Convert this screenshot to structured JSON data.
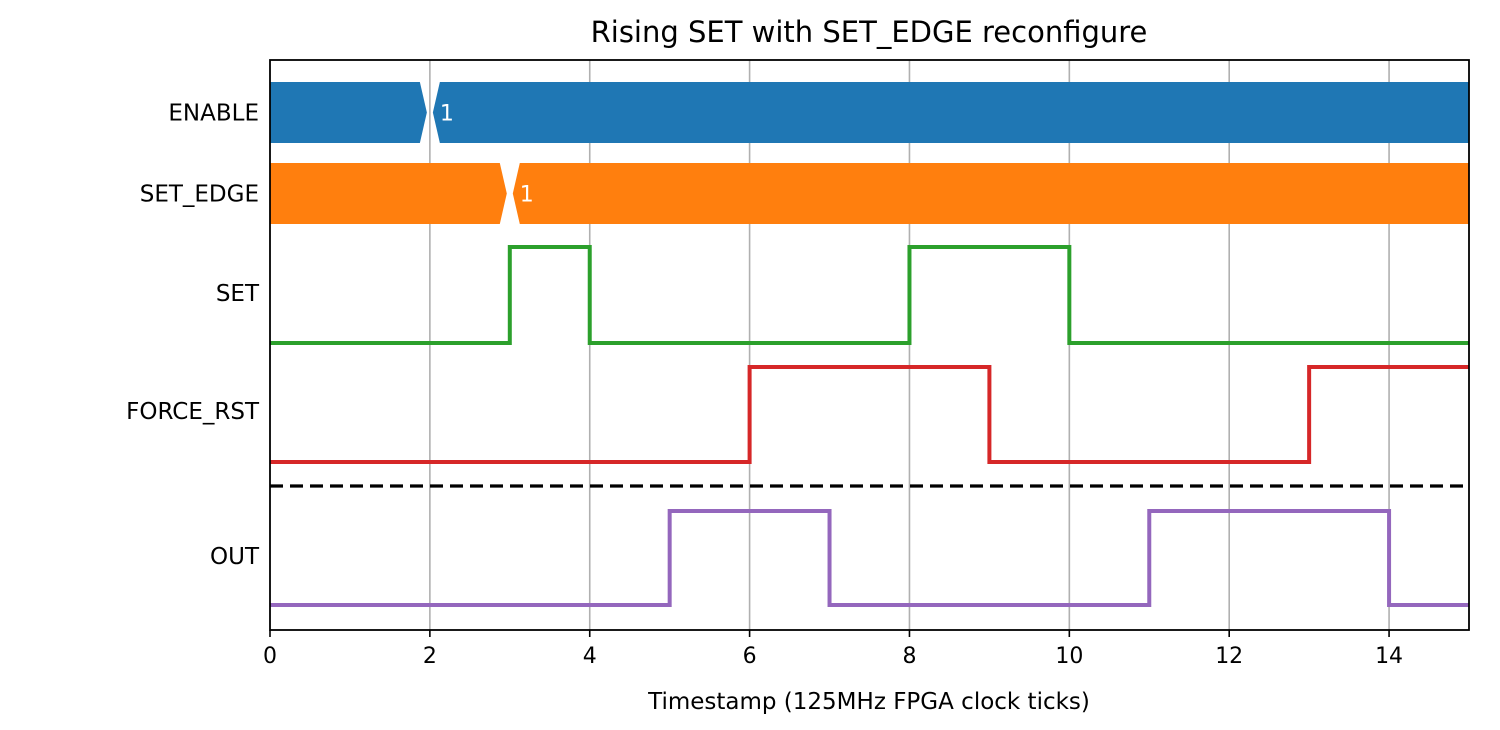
{
  "chart_data": {
    "type": "line",
    "chart_kind": "digital-timing-diagram",
    "title": "Rising SET with SET_EDGE reconfigure",
    "xlabel": "Timestamp (125MHz FPGA clock ticks)",
    "xlim": [
      0,
      15
    ],
    "xticks": [
      0,
      2,
      4,
      6,
      8,
      10,
      12,
      14
    ],
    "grid": "vertical",
    "separator_line": "dashed, between FORCE_RST and OUT",
    "signals": [
      {
        "name": "ENABLE",
        "kind": "bus",
        "color": "#1f77b4",
        "transitions": [
          {
            "x": 2,
            "value": "1"
          }
        ]
      },
      {
        "name": "SET_EDGE",
        "kind": "bus",
        "color": "#ff7f0e",
        "transitions": [
          {
            "x": 3,
            "value": "1"
          }
        ]
      },
      {
        "name": "SET",
        "kind": "digital",
        "color": "#2ca02c",
        "initial": 0,
        "edges": [
          3,
          4,
          8,
          10
        ]
      },
      {
        "name": "FORCE_RST",
        "kind": "digital",
        "color": "#d62728",
        "initial": 0,
        "edges": [
          6,
          9,
          13
        ]
      },
      {
        "name": "OUT",
        "kind": "digital",
        "color": "#9467bd",
        "initial": 0,
        "edges": [
          5,
          7,
          11,
          14
        ]
      }
    ]
  }
}
